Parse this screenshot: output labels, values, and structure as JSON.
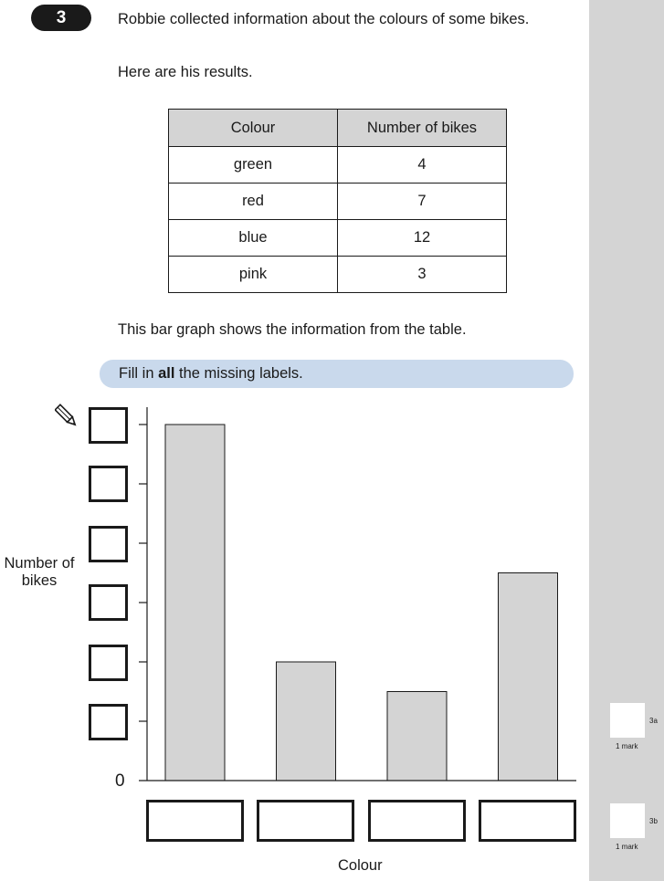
{
  "question": {
    "number": "3",
    "intro": "Robbie collected information about the colours of some bikes.",
    "results_text": "Here are his results.",
    "bar_text": "This bar graph shows the information from the table.",
    "instruction_pre": "Fill in ",
    "instruction_bold": "all",
    "instruction_post": " the missing labels."
  },
  "table": {
    "headers": [
      "Colour",
      "Number of bikes"
    ],
    "rows": [
      {
        "colour": "green",
        "count": "4"
      },
      {
        "colour": "red",
        "count": "7"
      },
      {
        "colour": "blue",
        "count": "12"
      },
      {
        "colour": "pink",
        "count": "3"
      }
    ]
  },
  "chart_data": {
    "type": "bar",
    "categories": [
      "",
      "",
      "",
      ""
    ],
    "values": [
      12,
      4,
      3,
      7
    ],
    "xlabel": "Colour",
    "ylabel": "Number of bikes",
    "ytick_zero": "0",
    "ylim": [
      0,
      12
    ],
    "ytick_count": 6,
    "bar_color": "#d4d4d4"
  },
  "margin": {
    "marks": [
      {
        "id": "3a",
        "label": "1 mark"
      },
      {
        "id": "3b",
        "label": "1 mark"
      }
    ]
  },
  "icons": {
    "pencil": "pencil-icon"
  }
}
